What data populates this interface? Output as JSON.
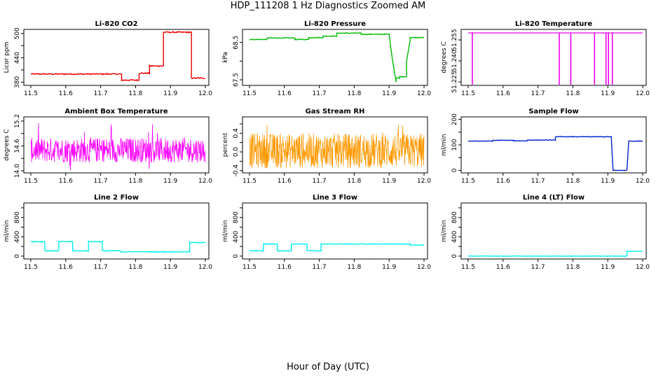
{
  "page": {
    "title": "HDP_111208  1 Hz Diagnostics Zoomed AM",
    "xlabel": "Hour of Day (UTC)"
  },
  "chart_data": [
    {
      "type": "line",
      "title": "Li-820 CO2",
      "ylabel": "Licor ppm",
      "color": "#ee0000",
      "xlim": [
        11.48,
        12.01
      ],
      "ylim": [
        372,
        510
      ],
      "xticks": [
        "11.5",
        "11.6",
        "11.7",
        "11.8",
        "11.9",
        "12.0"
      ],
      "yticks": [
        "380",
        "440",
        "500"
      ],
      "minor_yticks": [
        410,
        470
      ],
      "series": [
        {
          "x": [
            11.5,
            11.76,
            11.76,
            11.81,
            11.81,
            11.84,
            11.84,
            11.88,
            11.88,
            11.96,
            11.96,
            12.0
          ],
          "y": [
            400,
            400,
            385,
            385,
            402,
            402,
            420,
            420,
            503,
            503,
            390,
            390
          ],
          "noise": 1.5
        }
      ]
    },
    {
      "type": "line",
      "title": "Li-820 Pressure",
      "ylabel": "kPa",
      "color": "#00bb00",
      "xlim": [
        11.48,
        12.01
      ],
      "ylim": [
        67.35,
        68.85
      ],
      "xticks": [
        "11.5",
        "11.6",
        "11.7",
        "11.8",
        "11.9",
        "12.0"
      ],
      "yticks": [
        "67.5",
        "68.5"
      ],
      "minor_yticks": [
        68.0
      ],
      "series": [
        {
          "x": [
            11.5,
            11.55,
            11.55,
            11.63,
            11.63,
            11.67,
            11.67,
            11.71,
            11.71,
            11.75,
            11.75,
            11.82,
            11.82,
            11.9,
            11.91,
            11.92,
            11.92,
            11.93,
            11.93,
            11.95,
            11.95,
            11.96,
            11.96,
            12.0
          ],
          "y": [
            68.58,
            68.58,
            68.62,
            68.62,
            68.58,
            68.58,
            68.63,
            68.63,
            68.67,
            68.67,
            68.75,
            68.75,
            68.72,
            68.72,
            68.0,
            67.45,
            67.55,
            67.55,
            67.58,
            67.58,
            68.0,
            68.55,
            68.63,
            68.63
          ],
          "noise": 0.01
        }
      ]
    },
    {
      "type": "line",
      "title": "Li-820 Temperature",
      "ylabel": "degrees C",
      "color": "#ee00ee",
      "xlim": [
        11.48,
        12.01
      ],
      "ylim": [
        51.2225,
        51.2625
      ],
      "xticks": [
        "11.5",
        "11.6",
        "11.7",
        "11.8",
        "11.9",
        "12.0"
      ],
      "yticks": [
        "51.225",
        "51.240",
        "51.255"
      ],
      "baseline": 51.26,
      "drop_to": 51.2225,
      "drops": [
        11.512,
        11.761,
        11.794,
        11.862,
        11.895,
        11.902,
        11.913
      ]
    },
    {
      "type": "line",
      "title": "Ambient Box Temperature",
      "ylabel": "degrees C",
      "color": "#ff00ff",
      "xlim": [
        11.48,
        12.01
      ],
      "ylim": [
        13.95,
        15.3
      ],
      "xticks": [
        "11.5",
        "11.6",
        "11.7",
        "11.8",
        "11.9",
        "12.0"
      ],
      "yticks": [
        "14.0",
        "14.6",
        "15.2"
      ],
      "minor_yticks": [
        14.3,
        14.9
      ],
      "noise_band": {
        "x0": 11.5,
        "x1": 12.0,
        "lo": 14.2,
        "hi": 14.8,
        "min": 14.0,
        "max": 15.2
      }
    },
    {
      "type": "line",
      "title": "Gas Stream RH",
      "ylabel": "percent",
      "color": "#ff9900",
      "xlim": [
        11.48,
        12.01
      ],
      "ylim": [
        -0.45,
        0.75
      ],
      "xticks": [
        "11.5",
        "11.6",
        "11.7",
        "11.8",
        "11.9",
        "12.0"
      ],
      "yticks": [
        "-0.4",
        "0.0",
        "0.4"
      ],
      "minor_yticks": [
        -0.2,
        0.2,
        0.6
      ],
      "noise_band": {
        "x0": 11.5,
        "x1": 12.0,
        "lo": -0.35,
        "hi": 0.4,
        "min": -0.42,
        "max": 0.72
      }
    },
    {
      "type": "line",
      "title": "Sample Flow",
      "ylabel": "ml/min",
      "color": "#0022cc",
      "xlim": [
        11.48,
        12.01
      ],
      "ylim": [
        -10,
        210
      ],
      "xticks": [
        "11.5",
        "11.6",
        "11.7",
        "11.8",
        "11.9",
        "12.0"
      ],
      "yticks": [
        "0",
        "100",
        "200"
      ],
      "minor_yticks": [
        50,
        150
      ],
      "series": [
        {
          "x": [
            11.5,
            11.57,
            11.57,
            11.63,
            11.63,
            11.67,
            11.67,
            11.75,
            11.75,
            11.91,
            11.915,
            11.955,
            11.96,
            12.0
          ],
          "y": [
            115,
            115,
            118,
            118,
            116,
            116,
            119,
            119,
            132,
            132,
            0,
            0,
            115,
            115
          ],
          "noise": 1.0
        }
      ]
    },
    {
      "type": "line",
      "title": "Line 2 Flow",
      "ylabel": "ml/min",
      "color": "#00eeee",
      "xlim": [
        11.48,
        12.01
      ],
      "ylim": [
        -60,
        1100
      ],
      "xticks": [
        "11.5",
        "11.6",
        "11.7",
        "11.8",
        "11.9",
        "12.0"
      ],
      "yticks": [
        "0",
        "400",
        "800"
      ],
      "minor_yticks": [
        200,
        600,
        1000
      ],
      "series": [
        {
          "x": [
            11.5,
            11.54,
            11.54,
            11.58,
            11.58,
            11.62,
            11.62,
            11.665,
            11.665,
            11.705,
            11.705,
            11.755,
            11.755,
            11.955,
            11.955,
            12.0
          ],
          "y": [
            300,
            300,
            110,
            110,
            300,
            300,
            110,
            110,
            300,
            300,
            110,
            110,
            90,
            90,
            280,
            280
          ],
          "noise": 8
        }
      ]
    },
    {
      "type": "line",
      "title": "Line 3 Flow",
      "ylabel": "ml/min",
      "color": "#00eeee",
      "xlim": [
        11.48,
        12.01
      ],
      "ylim": [
        -60,
        1100
      ],
      "xticks": [
        "11.5",
        "11.6",
        "11.7",
        "11.8",
        "11.9",
        "12.0"
      ],
      "yticks": [
        "0",
        "400",
        "800"
      ],
      "minor_yticks": [
        200,
        600,
        1000
      ],
      "series": [
        {
          "x": [
            11.5,
            11.54,
            11.54,
            11.58,
            11.58,
            11.62,
            11.62,
            11.665,
            11.665,
            11.705,
            11.705,
            11.96,
            11.96,
            12.0
          ],
          "y": [
            110,
            110,
            250,
            250,
            110,
            110,
            250,
            250,
            110,
            110,
            250,
            250,
            230,
            230
          ],
          "noise": 6
        }
      ]
    },
    {
      "type": "line",
      "title": "Line 4 (LT) Flow",
      "ylabel": "ml/min",
      "color": "#00eeee",
      "xlim": [
        11.48,
        12.01
      ],
      "ylim": [
        -60,
        1100
      ],
      "xticks": [
        "11.5",
        "11.6",
        "11.7",
        "11.8",
        "11.9",
        "12.0"
      ],
      "yticks": [
        "0",
        "400",
        "800"
      ],
      "minor_yticks": [
        200,
        600,
        1000
      ],
      "series": [
        {
          "x": [
            11.5,
            11.955,
            11.955,
            12.0
          ],
          "y": [
            0,
            0,
            100,
            100
          ],
          "noise": 3
        }
      ]
    }
  ]
}
